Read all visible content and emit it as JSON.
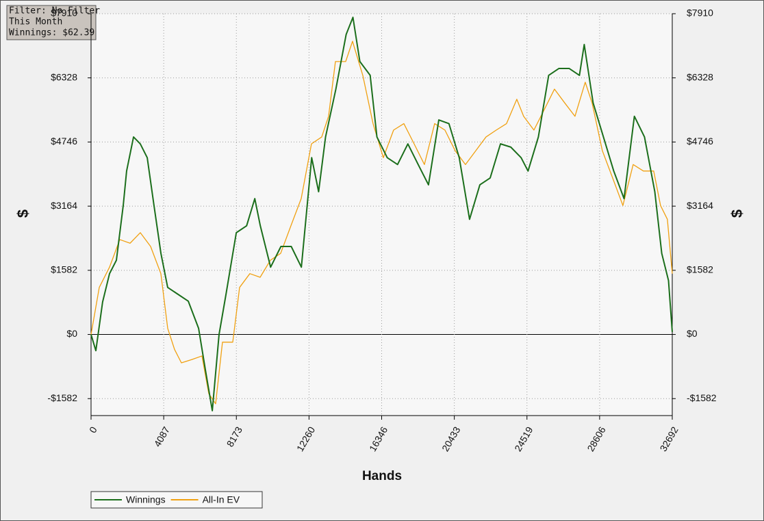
{
  "chart_data": {
    "type": "line",
    "info": [
      "Filter: No Filter",
      "This Month",
      "Winnings: $62.39"
    ],
    "x_label": "Hands",
    "y_label": "$",
    "y2_label": "$",
    "xlim": [
      0,
      32692
    ],
    "xticks": [
      0,
      4087,
      8173,
      12260,
      16346,
      20433,
      24519,
      28606,
      32692
    ],
    "ylim": [
      -2000,
      7910
    ],
    "yticks": [
      {
        "value": -1582,
        "label": "-$1582"
      },
      {
        "value": 0,
        "label": "$0"
      },
      {
        "value": 1582,
        "label": "$1582"
      },
      {
        "value": 3164,
        "label": "$3164"
      },
      {
        "value": 4746,
        "label": "$4746"
      },
      {
        "value": 6328,
        "label": "$6328"
      },
      {
        "value": 7910,
        "label": "$7910"
      }
    ],
    "grid": true,
    "legend": "bottom-left",
    "series": [
      {
        "name": "Winnings",
        "color": "#1b6e1b",
        "x": [
          0,
          270,
          650,
          1040,
          1425,
          1810,
          2000,
          2390,
          2770,
          3160,
          3540,
          3930,
          4310,
          4890,
          5470,
          6050,
          6430,
          6820,
          7200,
          7590,
          8170,
          8750,
          9210,
          9520,
          10100,
          10680,
          11260,
          11830,
          12410,
          12800,
          13190,
          13770,
          14350,
          14730,
          15120,
          15700,
          16080,
          16660,
          17240,
          17820,
          18400,
          18980,
          19560,
          20130,
          20710,
          21290,
          21870,
          22450,
          23030,
          23610,
          24190,
          24580,
          25160,
          25740,
          26320,
          26890,
          27470,
          27740,
          28240,
          28820,
          29400,
          29980,
          30560,
          31130,
          31710,
          32100,
          32480,
          32692
        ],
        "values": [
          0,
          -400,
          800,
          1500,
          1830,
          3180,
          4030,
          4870,
          4700,
          4360,
          3180,
          2000,
          1160,
          990,
          820,
          150,
          -870,
          -1880,
          0,
          990,
          2510,
          2680,
          3350,
          2680,
          1660,
          2170,
          2170,
          1660,
          4360,
          3520,
          4870,
          6050,
          7400,
          7820,
          6730,
          6390,
          4870,
          4360,
          4190,
          4700,
          4190,
          3690,
          5290,
          5200,
          4360,
          2840,
          3690,
          3860,
          4700,
          4620,
          4360,
          4030,
          4870,
          6390,
          6560,
          6560,
          6390,
          7150,
          5710,
          4870,
          4030,
          3350,
          5380,
          4870,
          3520,
          2000,
          1330,
          62
        ]
      },
      {
        "name": "All-In EV",
        "color": "#f0a010",
        "x": [
          0,
          462,
          1040,
          1617,
          2195,
          2772,
          3350,
          3927,
          4312,
          4697,
          5082,
          5660,
          6237,
          6622,
          7007,
          7392,
          7970,
          8355,
          8932,
          9510,
          10087,
          10665,
          11242,
          11820,
          12397,
          12975,
          13360,
          13745,
          14322,
          14707,
          15285,
          15862,
          16440,
          17017,
          17595,
          18172,
          18750,
          19327,
          19905,
          20482,
          21060,
          21637,
          22215,
          22792,
          23370,
          23947,
          24332,
          24910,
          25487,
          26065,
          26642,
          27220,
          27797,
          28182,
          28760,
          29337,
          29915,
          30492,
          31070,
          31647,
          32032,
          32417,
          32692
        ],
        "values": [
          0,
          1160,
          1660,
          2340,
          2250,
          2510,
          2170,
          1500,
          150,
          -370,
          -700,
          -620,
          -530,
          -1460,
          -1710,
          -190,
          -190,
          1160,
          1500,
          1410,
          1830,
          2000,
          2680,
          3350,
          4700,
          4870,
          5380,
          6730,
          6730,
          7230,
          6390,
          5200,
          4360,
          5040,
          5200,
          4700,
          4190,
          5200,
          5040,
          4530,
          4190,
          4530,
          4870,
          5040,
          5200,
          5800,
          5380,
          5040,
          5540,
          6050,
          5710,
          5380,
          6220,
          5710,
          4530,
          3860,
          3180,
          4190,
          4030,
          4030,
          3180,
          2840,
          1500
        ]
      }
    ]
  }
}
